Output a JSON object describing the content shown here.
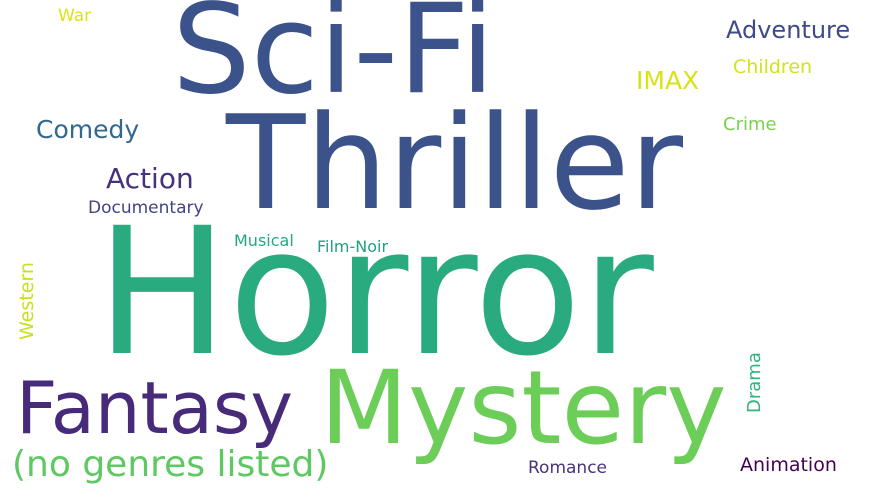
{
  "word_cloud": {
    "background": "#ffffff",
    "words": [
      {
        "key": "horror",
        "text": "Horror",
        "color": "#2aab7f"
      },
      {
        "key": "thriller",
        "text": "Thriller",
        "color": "#3b528b"
      },
      {
        "key": "scifi",
        "text": "Sci-Fi",
        "color": "#3b528b"
      },
      {
        "key": "mystery",
        "text": "Mystery",
        "color": "#6cce59"
      },
      {
        "key": "fantasy",
        "text": "Fantasy",
        "color": "#472a7a"
      },
      {
        "key": "nogenres",
        "text": "(no genres listed)",
        "color": "#5ec962"
      },
      {
        "key": "action",
        "text": "Action",
        "color": "#46327e"
      },
      {
        "key": "comedy",
        "text": "Comedy",
        "color": "#31688e"
      },
      {
        "key": "adventure",
        "text": "Adventure",
        "color": "#3e4a89"
      },
      {
        "key": "imax",
        "text": "IMAX",
        "color": "#d8e219"
      },
      {
        "key": "children",
        "text": "Children",
        "color": "#d2e21b"
      },
      {
        "key": "crime",
        "text": "Crime",
        "color": "#7ad151"
      },
      {
        "key": "documentary",
        "text": "Documentary",
        "color": "#414487"
      },
      {
        "key": "war",
        "text": "War",
        "color": "#dde318"
      },
      {
        "key": "musical",
        "text": "Musical",
        "color": "#22a884"
      },
      {
        "key": "filmnoir",
        "text": "Film-Noir",
        "color": "#1fa187"
      },
      {
        "key": "romance",
        "text": "Romance",
        "color": "#46337e"
      },
      {
        "key": "animation",
        "text": "Animation",
        "color": "#440154"
      },
      {
        "key": "western",
        "text": "Western",
        "color": "#c8e020"
      },
      {
        "key": "drama",
        "text": "Drama",
        "color": "#2fb47c"
      }
    ]
  }
}
